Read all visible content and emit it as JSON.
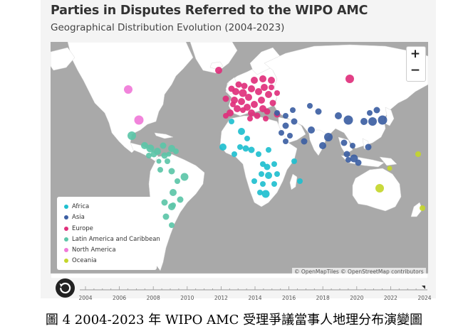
{
  "header": {
    "title": "Parties in Disputes Referred to the WIPO AMC",
    "subtitle": "Geographical Distribution Evolution (2004-2023)"
  },
  "zoom": {
    "in_label": "+",
    "out_label": "−"
  },
  "legend": {
    "items": [
      {
        "label": "Africa",
        "color": "#1fbfcf"
      },
      {
        "label": "Asia",
        "color": "#3d5fa3"
      },
      {
        "label": "Europe",
        "color": "#e0307c"
      },
      {
        "label": "Latin America and Caribbean",
        "color": "#5cc6a8"
      },
      {
        "label": "North America",
        "color": "#f07ad8"
      },
      {
        "label": "Oceania",
        "color": "#c4d62b"
      }
    ]
  },
  "attribution": "© OpenMapTiles © OpenStreetMap contributors",
  "timeline": {
    "ticks": [
      "2004",
      "2006",
      "2008",
      "2010",
      "2012",
      "2014",
      "2016",
      "2018",
      "2020",
      "2022",
      "2024"
    ],
    "current": "2024"
  },
  "caption": "圖 4 2004-2023 年 WIPO AMC 受理爭議當事人地理分布演變圖"
}
